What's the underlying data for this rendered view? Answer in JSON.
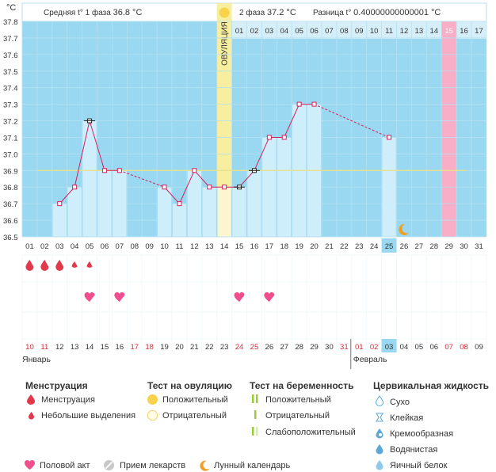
{
  "header": {
    "unit": "°C",
    "phase1_label": "Средняя t° 1 фаза",
    "phase1_value": "36.8 °C",
    "phase2_label": "2 фаза",
    "phase2_value": "37.2 °C",
    "diff_label": "Разница t°",
    "diff_value": "0.40000000000001 °C"
  },
  "colors": {
    "background": "#99d8f0",
    "bar_fill": "#cfeefc",
    "bar_stroke": "#a6d9ef",
    "line": "#d4205a",
    "point_fill": "#ffffff",
    "coverline": "#e8e08a",
    "ovulation_band": "#f7ee9f",
    "ovulation_band_light": "#fbf6d0",
    "period_band": "#f7aec6",
    "header_bg": "#ffffff",
    "drop": "#e3384b",
    "heart": "#f04e8c",
    "today": "#99d8f0",
    "yellow_circle": "#f7d24a"
  },
  "chart_data": {
    "type": "line",
    "ylabel": "°C",
    "ylim": [
      36.5,
      37.8
    ],
    "yticks": [
      "37.8",
      "37.7",
      "37.6",
      "37.5",
      "37.4",
      "37.3",
      "37.2",
      "37.1",
      "37.0",
      "36.9",
      "36.8",
      "36.7",
      "36.6",
      "36.5"
    ],
    "cycle_days": [
      "01",
      "02",
      "03",
      "04",
      "05",
      "06",
      "07",
      "08",
      "09",
      "10",
      "11",
      "12",
      "13",
      "14",
      "15",
      "16",
      "17",
      "18",
      "19",
      "20",
      "21",
      "22",
      "23",
      "24",
      "25",
      "26",
      "27",
      "28",
      "29",
      "30",
      "31"
    ],
    "post_ovulation_days": [
      "01",
      "02",
      "03",
      "04",
      "05",
      "06",
      "07",
      "08",
      "09",
      "10",
      "11",
      "12",
      "13",
      "14",
      "15",
      "16",
      "17"
    ],
    "ovulation_label": "ОВУЛЯЦИЯ",
    "ovulation_day": 14,
    "today_cycle_day": 25,
    "highlight_day": 29,
    "highlight_day_label": "15",
    "coverline": 36.9,
    "series": [
      {
        "values": [
          {
            "day": 3,
            "t": 36.7
          },
          {
            "day": 4,
            "t": 36.8
          },
          {
            "day": 5,
            "t": 37.2
          },
          {
            "day": 6,
            "t": 36.9
          },
          {
            "day": 7,
            "t": 36.9
          },
          {
            "day": 10,
            "t": 36.8
          },
          {
            "day": 11,
            "t": 36.7
          },
          {
            "day": 12,
            "t": 36.9
          },
          {
            "day": 13,
            "t": 36.8
          },
          {
            "day": 14,
            "t": 36.8
          },
          {
            "day": 15,
            "t": 36.8
          },
          {
            "day": 16,
            "t": 36.9
          },
          {
            "day": 17,
            "t": 37.1
          },
          {
            "day": 18,
            "t": 37.1
          },
          {
            "day": 19,
            "t": 37.3
          },
          {
            "day": 20,
            "t": 37.3
          },
          {
            "day": 25,
            "t": 37.1
          }
        ]
      }
    ],
    "special_points": [
      5,
      15,
      16
    ],
    "menstruation": [
      {
        "day": 1,
        "size": "large"
      },
      {
        "day": 2,
        "size": "large"
      },
      {
        "day": 3,
        "size": "large"
      },
      {
        "day": 4,
        "size": "small"
      },
      {
        "day": 5,
        "size": "small"
      }
    ],
    "intercourse_days": [
      5,
      7,
      15,
      17
    ],
    "moon_day": 26,
    "dates": [
      {
        "d": "10",
        "red": true
      },
      {
        "d": "11",
        "red": true
      },
      {
        "d": "12",
        "red": false
      },
      {
        "d": "13",
        "red": false
      },
      {
        "d": "14",
        "red": false
      },
      {
        "d": "15",
        "red": false
      },
      {
        "d": "16",
        "red": false
      },
      {
        "d": "17",
        "red": true
      },
      {
        "d": "18",
        "red": true
      },
      {
        "d": "19",
        "red": false
      },
      {
        "d": "20",
        "red": false
      },
      {
        "d": "21",
        "red": false
      },
      {
        "d": "22",
        "red": false
      },
      {
        "d": "23",
        "red": false
      },
      {
        "d": "24",
        "red": true
      },
      {
        "d": "25",
        "red": true
      },
      {
        "d": "26",
        "red": false
      },
      {
        "d": "27",
        "red": false
      },
      {
        "d": "28",
        "red": false
      },
      {
        "d": "29",
        "red": false
      },
      {
        "d": "30",
        "red": false
      },
      {
        "d": "31",
        "red": true
      },
      {
        "d": "01",
        "red": true
      },
      {
        "d": "02",
        "red": true
      },
      {
        "d": "03",
        "red": false
      },
      {
        "d": "04",
        "red": false
      },
      {
        "d": "05",
        "red": false
      },
      {
        "d": "06",
        "red": false
      },
      {
        "d": "07",
        "red": true
      },
      {
        "d": "08",
        "red": true
      },
      {
        "d": "09",
        "red": false
      }
    ],
    "month_start": "Январь",
    "month_next": "Февраль",
    "month_next_index": 23
  },
  "legend": {
    "menstruation_title": "Менструация",
    "menstruation_items": [
      "Менструация",
      "Небольшие выделения"
    ],
    "ovulation_title": "Тест на овуляцию",
    "ovulation_items": [
      "Положительный",
      "Отрицательный"
    ],
    "pregnancy_title": "Тест на беременность",
    "pregnancy_items": [
      "Положительный",
      "Отрицательный",
      "Слабоположительный"
    ],
    "cervical_title": "Цервикальная жидкость",
    "cervical_items": [
      "Сухо",
      "Клейкая",
      "Кремообразная",
      "Водянистая",
      "Яичный белок"
    ],
    "bottom_items": [
      "Половой акт",
      "Прием лекарств",
      "Лунный календарь"
    ]
  }
}
